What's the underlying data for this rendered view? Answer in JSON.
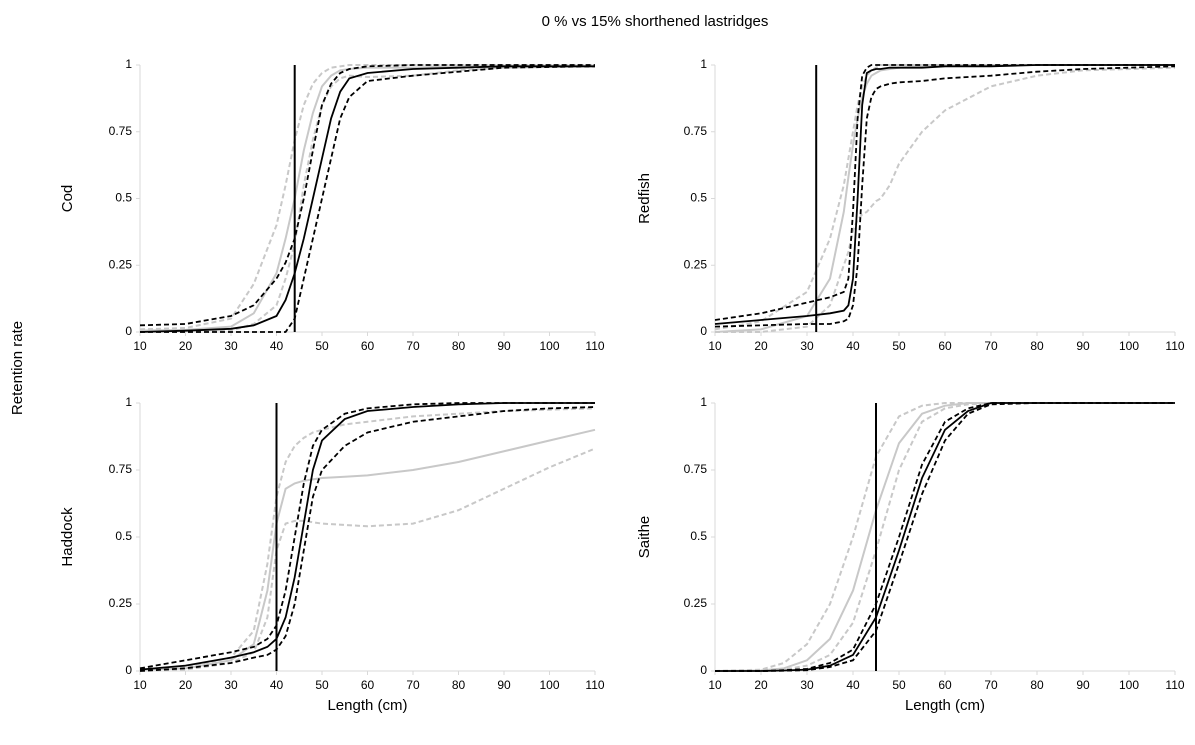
{
  "title": "0 % vs 15% shorthened lastridges",
  "ylabel": "Retention rate",
  "chart_data": [
    {
      "type": "line",
      "ylabel": "Cod",
      "vline": 44,
      "x": [
        10,
        20,
        30,
        35,
        40,
        42,
        44,
        46,
        48,
        50,
        52,
        54,
        56,
        60,
        70,
        80,
        90,
        110
      ],
      "xlim": [
        10,
        110
      ],
      "ylim": [
        0,
        1
      ],
      "xticks": [
        10,
        20,
        30,
        40,
        50,
        60,
        70,
        80,
        90,
        100,
        110
      ],
      "yticks": [
        0,
        0.25,
        0.5,
        0.75,
        1
      ],
      "series": [
        {
          "color": "#c8c8c8",
          "dashed": true,
          "values": [
            0.01,
            0.015,
            0.05,
            0.18,
            0.4,
            0.55,
            0.72,
            0.85,
            0.93,
            0.97,
            0.99,
            0.995,
            1,
            1,
            1,
            1,
            1,
            1
          ]
        },
        {
          "color": "#c8c8c8",
          "dashed": true,
          "values": [
            0,
            0,
            0.005,
            0.03,
            0.1,
            0.2,
            0.33,
            0.55,
            0.72,
            0.85,
            0.92,
            0.95,
            0.96,
            0.955,
            0.96,
            0.98,
            0.99,
            0.995
          ]
        },
        {
          "color": "#c8c8c8",
          "dashed": false,
          "values": [
            0.005,
            0.008,
            0.02,
            0.07,
            0.22,
            0.35,
            0.5,
            0.68,
            0.82,
            0.92,
            0.96,
            0.98,
            0.985,
            0.99,
            0.99,
            0.995,
            0.995,
            0.995
          ]
        },
        {
          "color": "#000000",
          "dashed": true,
          "values": [
            0.025,
            0.03,
            0.06,
            0.1,
            0.2,
            0.26,
            0.35,
            0.5,
            0.68,
            0.85,
            0.93,
            0.97,
            0.985,
            0.995,
            1,
            1,
            1,
            1
          ]
        },
        {
          "color": "#000000",
          "dashed": true,
          "values": [
            0,
            0,
            0,
            0,
            0,
            0,
            0.05,
            0.2,
            0.35,
            0.5,
            0.65,
            0.8,
            0.88,
            0.94,
            0.96,
            0.975,
            0.99,
            0.995
          ]
        },
        {
          "color": "#000000",
          "dashed": false,
          "values": [
            0,
            0.005,
            0.012,
            0.025,
            0.06,
            0.12,
            0.22,
            0.35,
            0.5,
            0.65,
            0.8,
            0.9,
            0.95,
            0.97,
            0.985,
            0.99,
            0.995,
            0.995
          ]
        }
      ]
    },
    {
      "type": "line",
      "ylabel": "Redfish",
      "vline": 32,
      "x": [
        10,
        20,
        30,
        35,
        38,
        39,
        40,
        41,
        42,
        43,
        44,
        45,
        46,
        48,
        50,
        55,
        60,
        70,
        80,
        90,
        110
      ],
      "xlim": [
        10,
        110
      ],
      "ylim": [
        0,
        1
      ],
      "xticks": [
        10,
        20,
        30,
        40,
        50,
        60,
        70,
        80,
        90,
        100,
        110
      ],
      "yticks": [
        0,
        0.25,
        0.5,
        0.75,
        1
      ],
      "series": [
        {
          "color": "#c8c8c8",
          "dashed": true,
          "values": [
            0.01,
            0.04,
            0.15,
            0.35,
            0.55,
            0.65,
            0.75,
            0.85,
            0.92,
            0.96,
            0.98,
            0.99,
            1,
            1,
            1,
            1,
            1,
            1,
            1,
            1,
            1
          ]
        },
        {
          "color": "#c8c8c8",
          "dashed": true,
          "values": [
            0,
            0,
            0.02,
            0.1,
            0.25,
            0.3,
            0.38,
            0.42,
            0.44,
            0.45,
            0.47,
            0.49,
            0.5,
            0.55,
            0.63,
            0.75,
            0.83,
            0.92,
            0.96,
            0.98,
            0.99
          ]
        },
        {
          "color": "#c8c8c8",
          "dashed": false,
          "values": [
            0,
            0.01,
            0.06,
            0.2,
            0.45,
            0.58,
            0.7,
            0.8,
            0.88,
            0.93,
            0.96,
            0.97,
            0.98,
            0.985,
            0.99,
            0.995,
            1,
            1,
            1,
            1,
            1
          ]
        },
        {
          "color": "#000000",
          "dashed": true,
          "values": [
            0.045,
            0.07,
            0.11,
            0.13,
            0.15,
            0.2,
            0.45,
            0.8,
            0.96,
            0.99,
            1,
            1,
            1,
            1,
            1,
            1,
            1,
            1,
            1,
            1,
            1
          ]
        },
        {
          "color": "#000000",
          "dashed": true,
          "values": [
            0.02,
            0.025,
            0.03,
            0.03,
            0.04,
            0.05,
            0.1,
            0.25,
            0.55,
            0.8,
            0.88,
            0.91,
            0.92,
            0.93,
            0.935,
            0.94,
            0.95,
            0.96,
            0.975,
            0.985,
            0.995
          ]
        },
        {
          "color": "#000000",
          "dashed": false,
          "values": [
            0.03,
            0.045,
            0.06,
            0.07,
            0.08,
            0.1,
            0.2,
            0.5,
            0.85,
            0.97,
            0.98,
            0.985,
            0.985,
            0.99,
            0.99,
            0.99,
            0.995,
            0.995,
            1,
            1,
            1
          ]
        }
      ]
    },
    {
      "type": "line",
      "ylabel": "Haddock",
      "xlabel": "Length (cm)",
      "vline": 40,
      "x": [
        10,
        20,
        30,
        35,
        38,
        40,
        42,
        44,
        46,
        48,
        50,
        55,
        60,
        70,
        80,
        90,
        100,
        110
      ],
      "xlim": [
        10,
        110
      ],
      "ylim": [
        0,
        1
      ],
      "xticks": [
        10,
        20,
        30,
        40,
        50,
        60,
        70,
        80,
        90,
        100,
        110
      ],
      "yticks": [
        0,
        0.25,
        0.5,
        0.75,
        1
      ],
      "series": [
        {
          "color": "#c8c8c8",
          "dashed": true,
          "values": [
            0.005,
            0.015,
            0.05,
            0.15,
            0.4,
            0.65,
            0.78,
            0.84,
            0.87,
            0.89,
            0.9,
            0.92,
            0.93,
            0.95,
            0.96,
            0.97,
            0.975,
            0.98
          ]
        },
        {
          "color": "#c8c8c8",
          "dashed": true,
          "values": [
            0,
            0.005,
            0.03,
            0.07,
            0.2,
            0.45,
            0.55,
            0.56,
            0.56,
            0.555,
            0.55,
            0.545,
            0.54,
            0.55,
            0.6,
            0.68,
            0.76,
            0.83
          ]
        },
        {
          "color": "#c8c8c8",
          "dashed": false,
          "values": [
            0.005,
            0.01,
            0.04,
            0.1,
            0.3,
            0.55,
            0.68,
            0.7,
            0.71,
            0.715,
            0.72,
            0.725,
            0.73,
            0.75,
            0.78,
            0.82,
            0.86,
            0.9
          ]
        },
        {
          "color": "#000000",
          "dashed": true,
          "values": [
            0.01,
            0.04,
            0.07,
            0.09,
            0.12,
            0.17,
            0.3,
            0.5,
            0.7,
            0.84,
            0.9,
            0.96,
            0.98,
            0.995,
            1,
            1,
            1,
            1
          ]
        },
        {
          "color": "#000000",
          "dashed": true,
          "values": [
            0,
            0.01,
            0.03,
            0.05,
            0.06,
            0.08,
            0.13,
            0.25,
            0.45,
            0.65,
            0.75,
            0.84,
            0.89,
            0.93,
            0.95,
            0.97,
            0.98,
            0.985
          ]
        },
        {
          "color": "#000000",
          "dashed": false,
          "values": [
            0.005,
            0.02,
            0.05,
            0.07,
            0.09,
            0.12,
            0.2,
            0.35,
            0.55,
            0.75,
            0.86,
            0.94,
            0.97,
            0.985,
            0.995,
            1,
            1,
            1
          ]
        }
      ]
    },
    {
      "type": "line",
      "ylabel": "Saithe",
      "xlabel": "Length (cm)",
      "vline": 45,
      "x": [
        10,
        20,
        25,
        30,
        35,
        40,
        45,
        50,
        55,
        60,
        65,
        70,
        80,
        110
      ],
      "xlim": [
        10,
        110
      ],
      "ylim": [
        0,
        1
      ],
      "xticks": [
        10,
        20,
        30,
        40,
        50,
        60,
        70,
        80,
        90,
        100,
        110
      ],
      "yticks": [
        0,
        0.25,
        0.5,
        0.75,
        1
      ],
      "series": [
        {
          "color": "#c8c8c8",
          "dashed": true,
          "values": [
            0,
            0.005,
            0.03,
            0.1,
            0.25,
            0.5,
            0.8,
            0.95,
            0.99,
            1,
            1,
            1,
            1,
            1
          ]
        },
        {
          "color": "#c8c8c8",
          "dashed": true,
          "values": [
            0,
            0.001,
            0.005,
            0.02,
            0.06,
            0.18,
            0.45,
            0.75,
            0.93,
            0.98,
            0.995,
            1,
            1,
            1
          ]
        },
        {
          "color": "#c8c8c8",
          "dashed": false,
          "values": [
            0,
            0.002,
            0.01,
            0.04,
            0.12,
            0.3,
            0.6,
            0.85,
            0.96,
            0.99,
            1,
            1,
            1,
            1
          ]
        },
        {
          "color": "#000000",
          "dashed": true,
          "values": [
            0,
            0,
            0.003,
            0.008,
            0.03,
            0.08,
            0.25,
            0.5,
            0.77,
            0.93,
            0.98,
            1,
            1,
            1
          ]
        },
        {
          "color": "#000000",
          "dashed": true,
          "values": [
            0,
            0,
            0.001,
            0.003,
            0.015,
            0.04,
            0.15,
            0.4,
            0.66,
            0.86,
            0.96,
            0.995,
            1,
            1
          ]
        },
        {
          "color": "#000000",
          "dashed": false,
          "values": [
            0,
            0,
            0.002,
            0.005,
            0.02,
            0.06,
            0.2,
            0.45,
            0.72,
            0.9,
            0.97,
            1,
            1,
            1
          ]
        }
      ]
    }
  ]
}
